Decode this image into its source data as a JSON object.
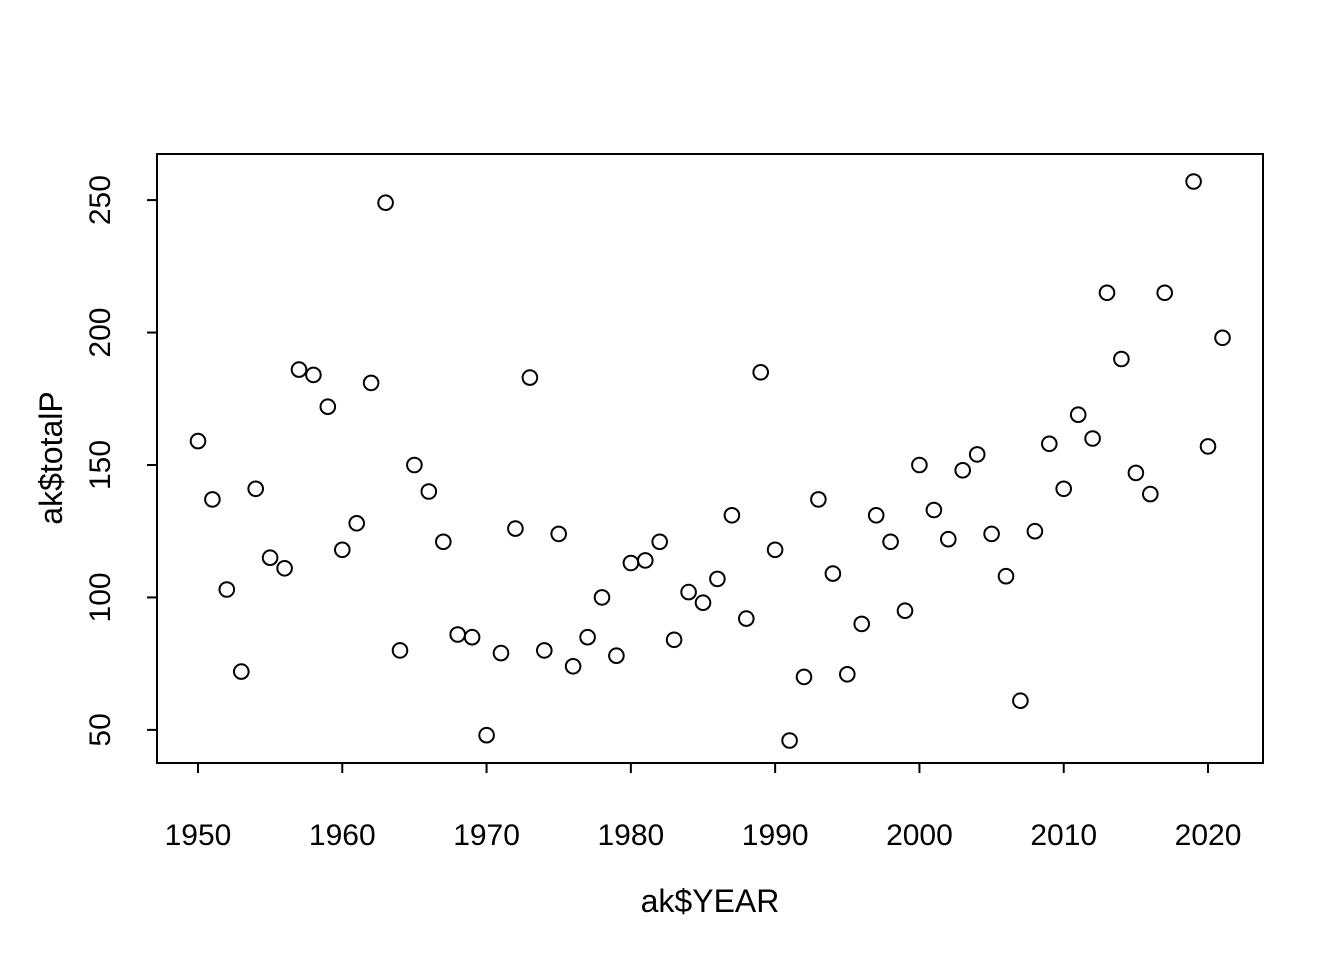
{
  "chart_data": {
    "type": "scatter",
    "title": "",
    "xlabel": "ak$YEAR",
    "ylabel": "ak$totalP",
    "marker": "open-circle",
    "grid": false,
    "legend": null,
    "xlim": [
      1947.16,
      2023.81
    ],
    "ylim": [
      37.5,
      267.4
    ],
    "x_ticks": [
      1950,
      1960,
      1970,
      1980,
      1990,
      2000,
      2010,
      2020
    ],
    "x_tick_labels": [
      "1950",
      "1960",
      "1970",
      "1980",
      "1990",
      "2000",
      "2010",
      "2020"
    ],
    "y_ticks": [
      50,
      100,
      150,
      200,
      250
    ],
    "y_tick_labels": [
      "50",
      "100",
      "150",
      "200",
      "250"
    ],
    "colors": {
      "background": "#ffffff",
      "axis": "#000000",
      "marker": "#000000",
      "text": "#000000"
    },
    "points": [
      [
        1950,
        159
      ],
      [
        1951,
        137
      ],
      [
        1952,
        103
      ],
      [
        1953,
        72
      ],
      [
        1954,
        141
      ],
      [
        1955,
        115
      ],
      [
        1956,
        111
      ],
      [
        1957,
        186
      ],
      [
        1958,
        184
      ],
      [
        1959,
        172
      ],
      [
        1960,
        118
      ],
      [
        1961,
        128
      ],
      [
        1962,
        181
      ],
      [
        1963,
        249
      ],
      [
        1964,
        80
      ],
      [
        1965,
        150
      ],
      [
        1966,
        140
      ],
      [
        1967,
        121
      ],
      [
        1968,
        86
      ],
      [
        1969,
        85
      ],
      [
        1970,
        48
      ],
      [
        1971,
        79
      ],
      [
        1972,
        126
      ],
      [
        1973,
        183
      ],
      [
        1974,
        80
      ],
      [
        1975,
        124
      ],
      [
        1976,
        74
      ],
      [
        1977,
        85
      ],
      [
        1978,
        100
      ],
      [
        1979,
        78
      ],
      [
        1980,
        113
      ],
      [
        1981,
        114
      ],
      [
        1982,
        121
      ],
      [
        1983,
        84
      ],
      [
        1984,
        102
      ],
      [
        1985,
        98
      ],
      [
        1986,
        107
      ],
      [
        1987,
        131
      ],
      [
        1988,
        92
      ],
      [
        1989,
        185
      ],
      [
        1990,
        118
      ],
      [
        1991,
        46
      ],
      [
        1992,
        70
      ],
      [
        1993,
        137
      ],
      [
        1994,
        109
      ],
      [
        1995,
        71
      ],
      [
        1996,
        90
      ],
      [
        1997,
        131
      ],
      [
        1998,
        121
      ],
      [
        1999,
        95
      ],
      [
        2000,
        150
      ],
      [
        2001,
        133
      ],
      [
        2002,
        122
      ],
      [
        2003,
        148
      ],
      [
        2004,
        154
      ],
      [
        2005,
        124
      ],
      [
        2006,
        108
      ],
      [
        2007,
        61
      ],
      [
        2008,
        125
      ],
      [
        2009,
        158
      ],
      [
        2010,
        141
      ],
      [
        2011,
        169
      ],
      [
        2012,
        160
      ],
      [
        2013,
        215
      ],
      [
        2014,
        190
      ],
      [
        2015,
        147
      ],
      [
        2016,
        139
      ],
      [
        2017,
        215
      ],
      [
        2019,
        257
      ],
      [
        2020,
        157
      ],
      [
        2021,
        198
      ]
    ]
  }
}
